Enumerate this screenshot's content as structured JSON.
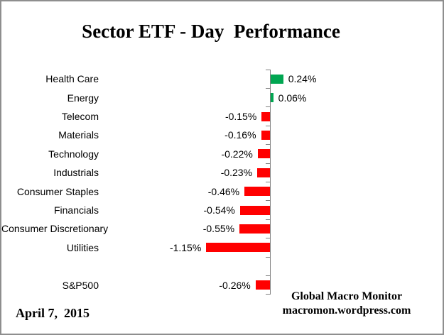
{
  "chart_data": {
    "type": "bar",
    "orientation": "horizontal",
    "title": "Sector ETF - Day  Performance",
    "categories": [
      "Health Care",
      "Energy",
      "Telecom",
      "Materials",
      "Technology",
      "Industrials",
      "Consumer Staples",
      "Financials",
      "Consumer Discretionary",
      "Utilities",
      "",
      "S&P500"
    ],
    "values": [
      0.24,
      0.06,
      -0.15,
      -0.16,
      -0.22,
      -0.23,
      -0.46,
      -0.54,
      -0.55,
      -1.15,
      null,
      -0.26
    ],
    "value_labels": [
      "0.24%",
      "0.06%",
      "-0.15%",
      "-0.16%",
      "-0.22%",
      "-0.23%",
      "-0.46%",
      "-0.54%",
      "-0.55%",
      "-1.15%",
      "",
      "-0.26%"
    ],
    "xlabel": "",
    "ylabel": "",
    "xlim": [
      -1.5,
      0.5
    ],
    "grid": false,
    "legend": false,
    "colors": {
      "positive": "#00A651",
      "negative": "#FF0000",
      "axis": "#808080"
    }
  },
  "footer": {
    "date": "April 7,  2015",
    "credit_line1": "Global Macro Monitor",
    "credit_line2": "macromon.wordpress.com"
  }
}
